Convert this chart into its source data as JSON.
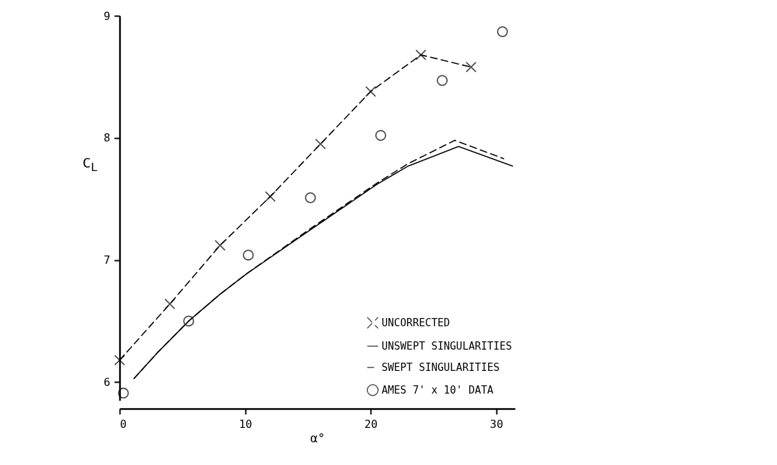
{
  "chart_data": {
    "type": "line",
    "xlabel": "α°",
    "ylabel": "C$_{L}$",
    "xlim": [
      0,
      31.5
    ],
    "ylim": [
      5.85,
      9
    ],
    "xticks": [
      0,
      10,
      20,
      30
    ],
    "yticks": [
      6,
      7,
      8,
      9
    ],
    "grid": false,
    "legend": "bottom right",
    "series": [
      {
        "name": "UNCORRECTED",
        "color": "#000000",
        "marker": "cross",
        "line_style": "dashed",
        "x": [
          0,
          4,
          8,
          12,
          16,
          20,
          24,
          28
        ],
        "values": [
          6.18,
          6.64,
          7.12,
          7.52,
          7.95,
          8.38,
          8.68,
          8.58
        ]
      },
      {
        "name": "UNSWEPT SINGULARITIES",
        "color": "#000000",
        "marker": "none",
        "line_style": "solid",
        "x": [
          1.15,
          3,
          5.5,
          8,
          10.15,
          15.1,
          20.5,
          23,
          27,
          31.3
        ],
        "values": [
          6.03,
          6.24,
          6.5,
          6.72,
          6.89,
          7.24,
          7.62,
          7.77,
          7.93,
          7.77
        ]
      },
      {
        "name": "SWEPT SINGULARITIES",
        "color": "#000000",
        "marker": "none",
        "line_style": "dashed",
        "x": [
          1.15,
          3,
          5.5,
          8,
          10.15,
          15.1,
          20.5,
          23,
          26.7,
          30.6
        ],
        "values": [
          6.03,
          6.24,
          6.5,
          6.72,
          6.89,
          7.25,
          7.63,
          7.79,
          7.98,
          7.83
        ]
      },
      {
        "name": "AMES 7' x 10' DATA",
        "color": "#000000",
        "type": "scatter",
        "marker": "circle",
        "x": [
          0.3,
          5.5,
          10.25,
          15.2,
          20.8,
          25.7,
          30.5
        ],
        "values": [
          5.91,
          6.5,
          7.04,
          7.51,
          8.02,
          8.47,
          8.87
        ]
      }
    ]
  }
}
